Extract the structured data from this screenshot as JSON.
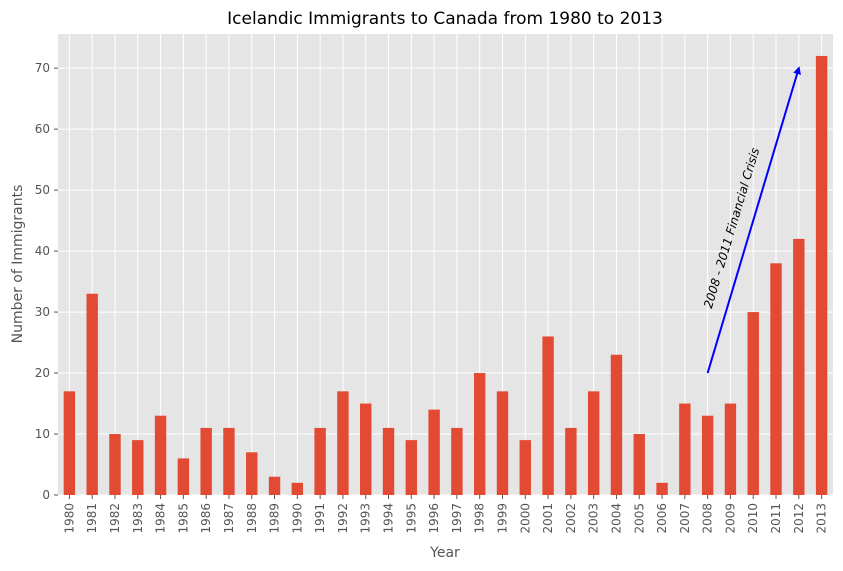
{
  "chart_data": {
    "type": "bar",
    "title": "Icelandic Immigrants to Canada from 1980 to 2013",
    "xlabel": "Year",
    "ylabel": "Number of Immigrants",
    "categories": [
      "1980",
      "1981",
      "1982",
      "1983",
      "1984",
      "1985",
      "1986",
      "1987",
      "1988",
      "1989",
      "1990",
      "1991",
      "1992",
      "1993",
      "1994",
      "1995",
      "1996",
      "1997",
      "1998",
      "1999",
      "2000",
      "2001",
      "2002",
      "2003",
      "2004",
      "2005",
      "2006",
      "2007",
      "2008",
      "2009",
      "2010",
      "2011",
      "2012",
      "2013"
    ],
    "values": [
      17,
      33,
      10,
      9,
      13,
      6,
      11,
      11,
      7,
      3,
      2,
      11,
      17,
      15,
      11,
      9,
      14,
      11,
      20,
      17,
      9,
      26,
      11,
      17,
      23,
      10,
      2,
      15,
      13,
      15,
      30,
      38,
      42,
      72
    ],
    "ylim": [
      0,
      75.6
    ],
    "yticks": [
      0,
      10,
      20,
      30,
      40,
      50,
      60,
      70
    ],
    "grid": true,
    "bar_color": "#e24a33",
    "background_color": "#e5e5e5",
    "annotation": {
      "text": "2008 - 2011 Financial Crisis",
      "arrow_from": {
        "category": "2008",
        "value": 20
      },
      "arrow_to": {
        "category": "2012",
        "value": 70
      },
      "arrow_color": "#0000ff"
    }
  }
}
